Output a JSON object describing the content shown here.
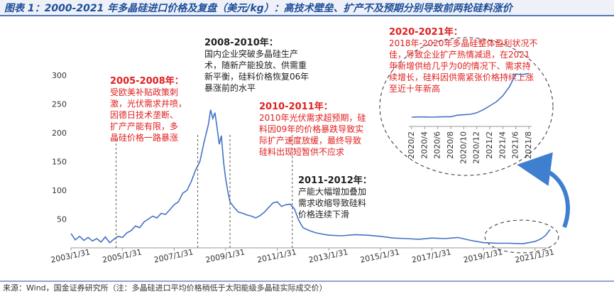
{
  "header": {
    "title": "图表 1：2000-2021 年多晶硅进口价格及复盘（美元/kg）：高技术壁垒、扩产不及预期分别导致前两轮硅料涨价"
  },
  "chart_data": [
    {
      "type": "line",
      "color": "#4472c4",
      "x": [
        "2003/1/31",
        "2003/3/31",
        "2003/5/31",
        "2003/7/31",
        "2003/9/30",
        "2003/11/30",
        "2004/1/31",
        "2004/3/31",
        "2004/5/31",
        "2004/7/31",
        "2004/9/30",
        "2004/11/30",
        "2005/1/31",
        "2005/3/31",
        "2005/5/31",
        "2005/7/31",
        "2005/9/30",
        "2005/11/30",
        "2006/1/31",
        "2006/3/31",
        "2006/5/31",
        "2006/7/31",
        "2006/9/30",
        "2006/11/30",
        "2007/1/31",
        "2007/3/31",
        "2007/5/31",
        "2007/7/31",
        "2007/9/30",
        "2007/11/30",
        "2008/1/31",
        "2008/3/31",
        "2008/5/31",
        "2008/6/30",
        "2008/7/31",
        "2008/8/31",
        "2008/9/30",
        "2008/10/31",
        "2008/11/30",
        "2008/12/31",
        "2009/1/31",
        "2009/2/28",
        "2009/3/31",
        "2009/5/31",
        "2009/7/31",
        "2009/9/30",
        "2009/11/30",
        "2010/1/31",
        "2010/3/31",
        "2010/5/31",
        "2010/7/31",
        "2010/9/30",
        "2010/11/30",
        "2011/1/31",
        "2011/3/31",
        "2011/5/31",
        "2011/7/31",
        "2011/9/30",
        "2011/11/30",
        "2012/1/31",
        "2012/4/30",
        "2012/7/31",
        "2012/10/31",
        "2013/1/31",
        "2013/7/31",
        "2014/1/31",
        "2014/7/31",
        "2015/1/31",
        "2015/7/31",
        "2016/1/31",
        "2016/7/31",
        "2017/1/31",
        "2017/7/31",
        "2018/1/31",
        "2018/7/31",
        "2019/1/31",
        "2019/7/31",
        "2020/1/31",
        "2020/7/31",
        "2021/1/31",
        "2021/4/30",
        "2021/6/30",
        "2021/8/31"
      ],
      "values": [
        25,
        14,
        20,
        13,
        18,
        12,
        16,
        10,
        19,
        9,
        15,
        20,
        18,
        26,
        30,
        38,
        35,
        45,
        50,
        55,
        52,
        60,
        58,
        66,
        75,
        80,
        95,
        100,
        115,
        135,
        150,
        185,
        215,
        240,
        225,
        235,
        210,
        180,
        195,
        150,
        120,
        100,
        80,
        70,
        62,
        60,
        57,
        55,
        52,
        56,
        62,
        70,
        78,
        80,
        72,
        75,
        76,
        68,
        48,
        35,
        30,
        26,
        24,
        22,
        21,
        23,
        22,
        20,
        17,
        16,
        15,
        17,
        16,
        18,
        13,
        9,
        8,
        8,
        7,
        11,
        16,
        22,
        32
      ],
      "xlim": [
        "2003/1/31",
        "2021/8/31"
      ],
      "xticks": [
        "2003/1/31",
        "2005/1/31",
        "2007/1/31",
        "2009/1/31",
        "2011/1/31",
        "2013/1/31",
        "2015/1/31",
        "2017/1/31",
        "2019/1/31",
        "2021/1/31"
      ],
      "ylim": [
        0,
        300
      ],
      "yticks": [
        50,
        100,
        150,
        200,
        250,
        300
      ],
      "dividers": [
        "2004/10/31",
        "2007/12/31",
        "2009/3/31",
        "2011/8/31"
      ],
      "annotations": [
        {
          "title": "2005-2008年：",
          "color": "#e02020",
          "lines": [
            "受欧美补贴政策刺",
            "激，光伏需求井喷，",
            "因德日技术垄断、",
            "扩产产能有限，多",
            "晶硅价格一路暴涨"
          ]
        },
        {
          "title": "2008-2010年：",
          "color": "#222222",
          "lines": [
            "国内企业突破多晶硅生产",
            "术，随新产能投放、供需重",
            "新平衡，硅料价格恢复06年",
            "暴涨前的水平"
          ]
        },
        {
          "title": "2010-2011年：",
          "color": "#e02020",
          "lines": [
            "2010年光伏需求超预期，硅",
            "料因09年的价格暴跌导致实",
            "际扩产速度放缓，最终导致",
            "硅料出现短暂供不应求"
          ]
        },
        {
          "title": "2011-2012年：",
          "color": "#222222",
          "lines": [
            "产能大幅增加叠加",
            "需求收缩导致硅料",
            "价格连续下滑"
          ]
        },
        {
          "title": "2020-2021年：",
          "color": "#e02020",
          "lines": [
            "2018年-2020年多晶硅整体盈利状况不",
            "佳，导致企业扩产热情减退，在2021",
            "年新增供给几乎为0的情况下、需求持",
            "续增长，硅料因供需紧张价格持续上涨",
            "至近十年新高"
          ]
        }
      ]
    },
    {
      "type": "line",
      "color": "#4472c4",
      "x": [
        "2020/2",
        "2020/3",
        "2020/4",
        "2020/5",
        "2020/6",
        "2020/7",
        "2020/8",
        "2020/9",
        "2020/10",
        "2020/11",
        "2020/12",
        "2021/1",
        "2021/2",
        "2021/3",
        "2021/4",
        "2021/5",
        "2021/6",
        "2021/7",
        "2021/8"
      ],
      "values": [
        78,
        79,
        79,
        78,
        79,
        80,
        80,
        88,
        90,
        92,
        100,
        115,
        135,
        155,
        185,
        230,
        295,
        292,
        298
      ],
      "xticks": [
        "2020/2",
        "2020/4",
        "2020/6",
        "2020/8",
        "2020/10",
        "2020/12",
        "2021/2",
        "2021/4",
        "2021/6",
        "2021/8"
      ]
    }
  ],
  "footer": {
    "source": "来源：Wind，国金证券研究所（注：多晶硅进口平均价格稍低于太阳能级多晶硅实际成交价）"
  }
}
